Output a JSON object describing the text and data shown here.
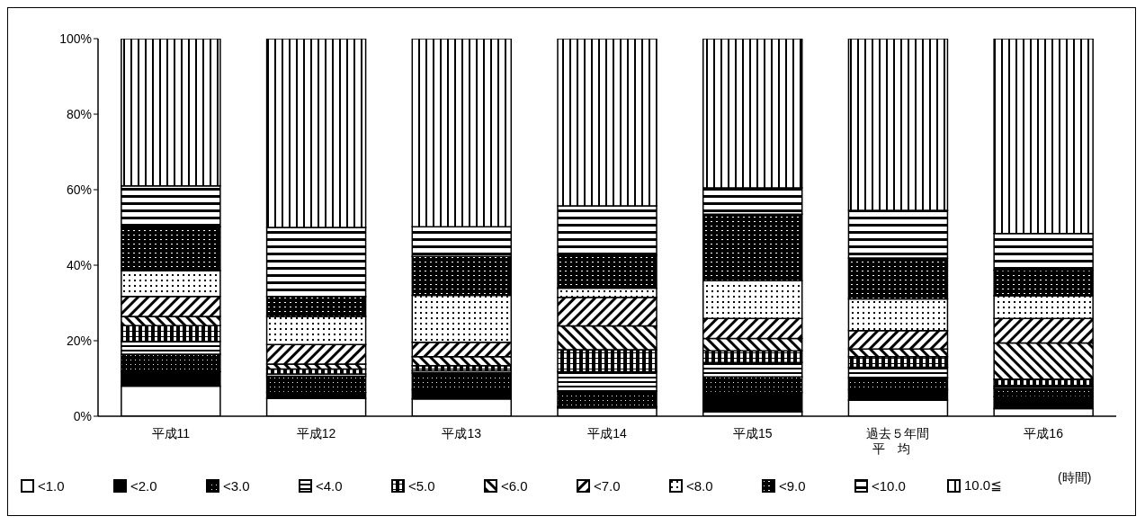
{
  "chart_data": {
    "type": "bar",
    "stacked": true,
    "categories": [
      "平成11",
      "平成12",
      "平成13",
      "平成14",
      "平成15",
      "過去５年間平均",
      "平成16"
    ],
    "ylim": [
      0,
      100
    ],
    "yticks": [
      {
        "value": 0,
        "label": "0%"
      },
      {
        "value": 20,
        "label": "20%"
      },
      {
        "value": 40,
        "label": "40%"
      },
      {
        "value": 60,
        "label": "60%"
      },
      {
        "value": 80,
        "label": "80%"
      },
      {
        "value": 100,
        "label": "100%"
      }
    ],
    "legend": "bottom",
    "legend_title": "(時間)",
    "series": [
      {
        "name": "<1.0",
        "color": "#ffffff",
        "values": [
          8.0,
          4.7,
          4.6,
          2.2,
          1.2,
          4.2,
          2.0
        ]
      },
      {
        "name": "<2.0",
        "color": "#000000",
        "values": [
          3.8,
          1.6,
          2.4,
          0.4,
          5.1,
          2.8,
          3.2
        ]
      },
      {
        "name": "<3.0",
        "color": "#000000",
        "values": [
          4.6,
          4.3,
          4.4,
          4.0,
          4.1,
          3.2,
          2.2
        ]
      },
      {
        "name": "<4.0",
        "color": "#000000",
        "values": [
          3.4,
          0.6,
          0.6,
          5.2,
          3.8,
          2.8,
          0.6
        ]
      },
      {
        "name": "<5.0",
        "color": "#000000",
        "values": [
          4.2,
          1.3,
          1.4,
          5.8,
          3.1,
          2.8,
          1.8
        ]
      },
      {
        "name": "<6.0",
        "color": "#000000",
        "values": [
          2.4,
          1.3,
          2.4,
          6.3,
          3.3,
          2.0,
          9.6
        ]
      },
      {
        "name": "<7.0",
        "color": "#000000",
        "values": [
          5.3,
          5.2,
          3.8,
          7.6,
          5.3,
          4.9,
          6.5
        ]
      },
      {
        "name": "<8.0",
        "color": "#000000",
        "values": [
          6.9,
          7.4,
          12.4,
          2.4,
          10.0,
          8.4,
          6.0
        ]
      },
      {
        "name": "<9.0",
        "color": "#000000",
        "values": [
          11.6,
          5.3,
          10.3,
          8.8,
          17.6,
          10.8,
          6.8
        ]
      },
      {
        "name": "<10.0",
        "color": "#000000",
        "values": [
          10.8,
          18.3,
          7.9,
          13.0,
          7.0,
          12.6,
          9.7
        ]
      },
      {
        "name": "10.0≦",
        "color": "#000000",
        "values": [
          39.0,
          50.0,
          49.8,
          44.3,
          39.5,
          45.5,
          51.6
        ]
      }
    ]
  }
}
